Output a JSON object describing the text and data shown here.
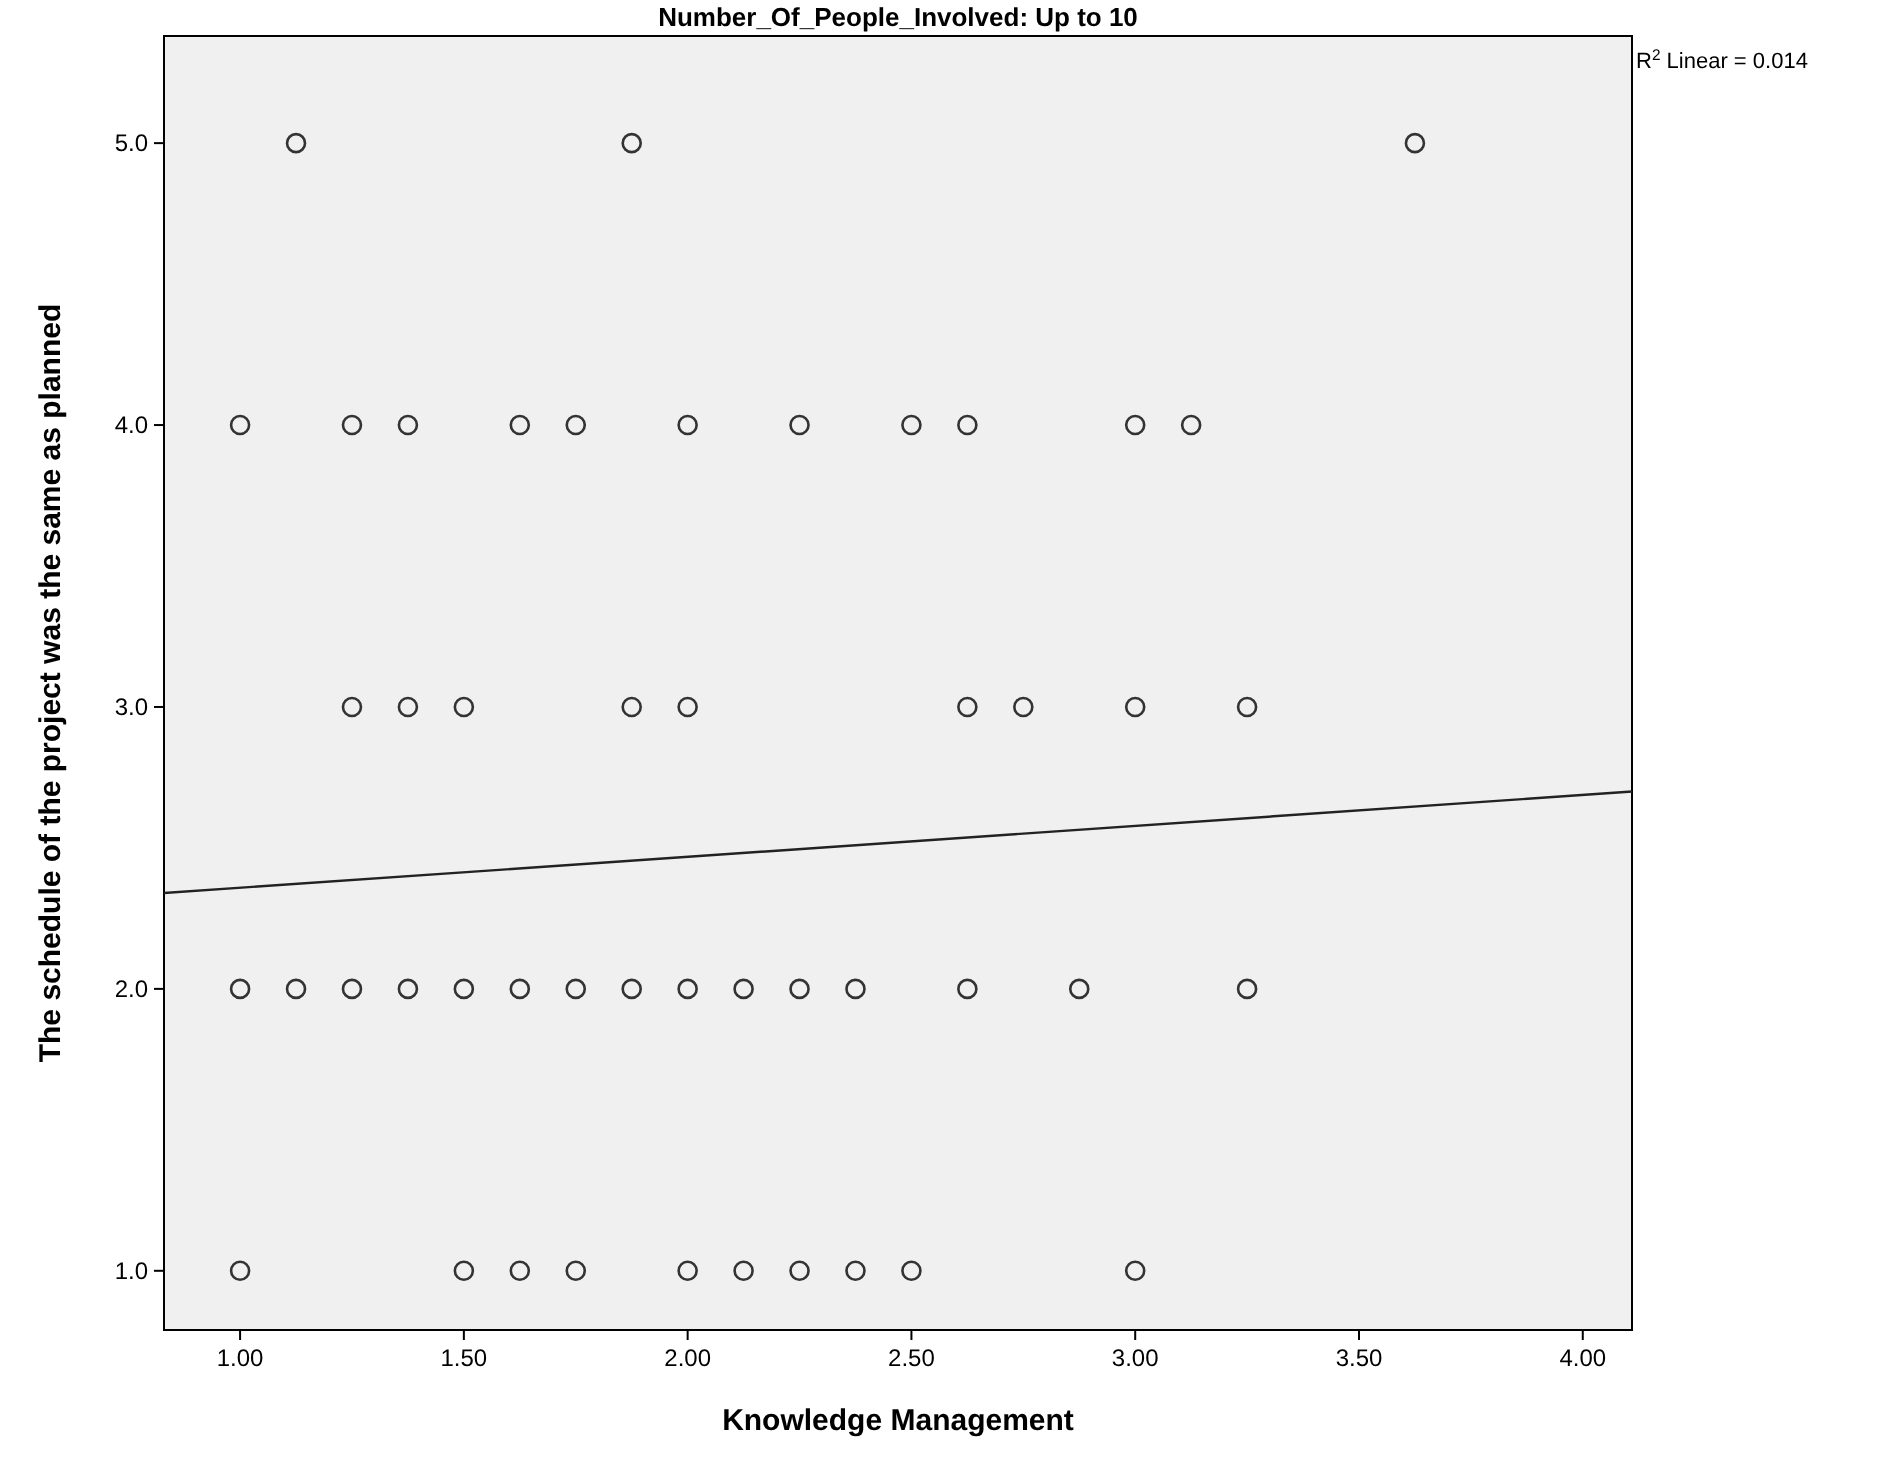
{
  "chart_data": {
    "type": "scatter",
    "title": "Number_Of_People_Involved: Up to 10",
    "xlabel": "Knowledge Management",
    "ylabel": "The schedule of the project was the same as planned",
    "xlim": [
      0.83,
      4.11
    ],
    "ylim": [
      0.79,
      5.38
    ],
    "xticks": [
      {
        "value": 1,
        "label": "1.00"
      },
      {
        "value": 1.5,
        "label": "1.50"
      },
      {
        "value": 2,
        "label": "2.00"
      },
      {
        "value": 2.5,
        "label": "2.50"
      },
      {
        "value": 3,
        "label": "3.00"
      },
      {
        "value": 3.5,
        "label": "3.50"
      },
      {
        "value": 4,
        "label": "4.00"
      }
    ],
    "yticks": [
      {
        "value": 1,
        "label": "1.0"
      },
      {
        "value": 2,
        "label": "2.0"
      },
      {
        "value": 3,
        "label": "3.0"
      },
      {
        "value": 4,
        "label": "4.0"
      },
      {
        "value": 5,
        "label": "5.0"
      }
    ],
    "grid": false,
    "annotations": [
      "R$^{2}$ Linear = 0.014"
    ],
    "series": [
      {
        "marker": "circle",
        "color": "#333333",
        "x": [
          1.125,
          1.875,
          3.625,
          1,
          1.25,
          1.375,
          1.625,
          1.75,
          2,
          2.25,
          2.5,
          2.625,
          3,
          3.125,
          1.25,
          1.375,
          1.5,
          1.875,
          2,
          2.625,
          2.75,
          3,
          3.25,
          1,
          1.125,
          1.25,
          1.375,
          1.5,
          1.625,
          1.75,
          1.875,
          2,
          2.125,
          2.25,
          2.375,
          2.625,
          2.875,
          3.25,
          1,
          1.5,
          1.625,
          1.75,
          2,
          2.125,
          2.25,
          2.375,
          2.5,
          3
        ],
        "values": [
          5,
          5,
          5,
          4,
          4,
          4,
          4,
          4,
          4,
          4,
          4,
          4,
          4,
          4,
          3,
          3,
          3,
          3,
          3,
          3,
          3,
          3,
          3,
          2,
          2,
          2,
          2,
          2,
          2,
          2,
          2,
          2,
          2,
          2,
          2,
          2,
          2,
          2,
          1,
          1,
          1,
          1,
          1,
          1,
          1,
          1,
          1,
          1
        ]
      },
      {
        "type": "line",
        "color": "#222222",
        "x": [
          0.83,
          4.11
        ],
        "values": [
          2.34,
          2.7
        ]
      }
    ]
  }
}
